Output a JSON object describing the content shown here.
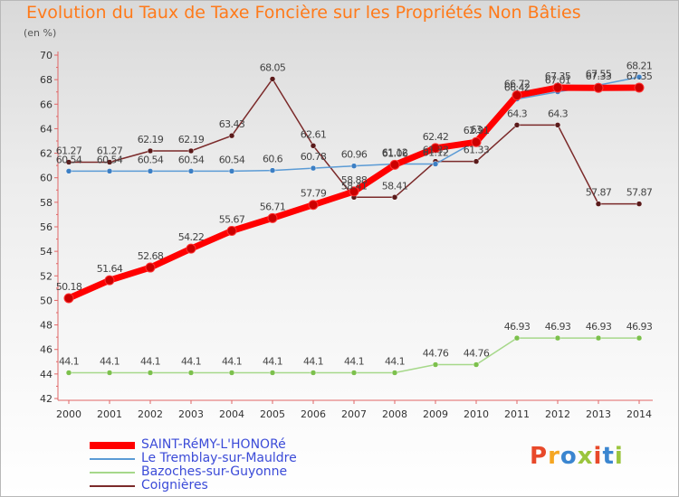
{
  "title": "Evolution du Taux de Taxe Foncière sur les Propriétés Non Bâties",
  "subtitle": "(en %)",
  "brand": "Proxiti",
  "brand_colors": [
    "#e8492a",
    "#f5a623",
    "#3b86d0",
    "#9bc53d",
    "#e8492a",
    "#3b86d0",
    "#9bc53d"
  ],
  "chart_data": {
    "type": "line",
    "title": "Evolution du Taux de Taxe Foncière sur les Propriétés Non Bâties",
    "ylabel": "(en %)",
    "xlabel": "",
    "x": [
      "2000",
      "2001",
      "2002",
      "2003",
      "2004",
      "2005",
      "2006",
      "2007",
      "2008",
      "2009",
      "2010",
      "2011",
      "2012",
      "2013",
      "2014"
    ],
    "ylim": [
      42,
      70
    ],
    "yticks": [
      42,
      44,
      46,
      48,
      50,
      52,
      54,
      56,
      58,
      60,
      62,
      64,
      66,
      68,
      70
    ],
    "grid": false,
    "legend_position": "bottom-left",
    "series": [
      {
        "name": "SAINT-RéMY-L'HONORé",
        "color": "#ff0000",
        "marker_color": "#cc0000",
        "width": 7,
        "values": [
          50.18,
          51.64,
          52.68,
          54.22,
          55.67,
          56.71,
          57.79,
          58.88,
          61.06,
          62.42,
          62.91,
          66.72,
          67.35,
          67.33,
          67.35
        ],
        "labels": [
          "50.18",
          "51.64",
          "52.68",
          "54.22",
          "55.67",
          "56.71",
          "57.79",
          "58.88",
          "61.06",
          "62.42",
          "62.91",
          "66.72",
          "67.35",
          "67.33",
          "67.35"
        ]
      },
      {
        "name": "Le Tremblay-sur-Mauldre",
        "color": "#5b9bd5",
        "marker_color": "#3c7fc4",
        "width": 1.5,
        "values": [
          60.54,
          60.54,
          60.54,
          60.54,
          60.54,
          60.6,
          60.78,
          60.96,
          61.12,
          61.12,
          63,
          66.42,
          67.01,
          67.55,
          68.21
        ],
        "labels": [
          "60.54",
          "60.54",
          "60.54",
          "60.54",
          "60.54",
          "60.6",
          "60.78",
          "60.96",
          "61.12",
          "61.12",
          "63",
          "66.42",
          "67.01",
          "67.55",
          "68.21"
        ]
      },
      {
        "name": "Bazoches-sur-Guyonne",
        "color": "#a6d88a",
        "marker_color": "#7cc04c",
        "width": 1.5,
        "values": [
          44.1,
          44.1,
          44.1,
          44.1,
          44.1,
          44.1,
          44.1,
          44.1,
          44.1,
          44.76,
          44.76,
          46.93,
          46.93,
          46.93,
          46.93
        ],
        "labels": [
          "44.1",
          "44.1",
          "44.1",
          "44.1",
          "44.1",
          "44.1",
          "44.1",
          "44.1",
          "44.1",
          "44.76",
          "44.76",
          "46.93",
          "46.93",
          "46.93",
          "46.93"
        ]
      },
      {
        "name": "Coignières",
        "color": "#7b2a2a",
        "marker_color": "#5a1a1a",
        "width": 1.5,
        "values": [
          61.27,
          61.27,
          62.19,
          62.19,
          63.43,
          68.05,
          62.61,
          58.41,
          58.41,
          61.33,
          61.33,
          64.3,
          64.3,
          57.87,
          57.87
        ],
        "labels": [
          "61.27",
          "61.27",
          "62.19",
          "62.19",
          "63.43",
          "68.05",
          "62.61",
          "58.41",
          "58.41",
          "61.33",
          "61.33",
          "64.3",
          "64.3",
          "57.87",
          "57.87"
        ]
      }
    ]
  }
}
